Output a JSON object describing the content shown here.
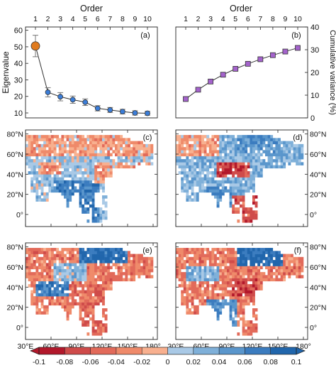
{
  "chart_data": [
    {
      "panel": "(a)",
      "type": "line",
      "title": "Order",
      "xlabel": "",
      "ylabel": "Eigenvalue",
      "x": [
        1,
        2,
        3,
        4,
        5,
        6,
        7,
        8,
        9,
        10
      ],
      "xticks": [
        "1",
        "2",
        "3",
        "4",
        "5",
        "6",
        "7",
        "8",
        "9",
        "10"
      ],
      "yticks": [
        "10",
        "20",
        "30",
        "40",
        "50",
        "60"
      ],
      "ylim": [
        7,
        62
      ],
      "series": [
        {
          "values": [
            50.5,
            22.5,
            19.8,
            18.0,
            16.5,
            12.8,
            11.8,
            10.8,
            10.0,
            9.8
          ],
          "error": [
            6.5,
            2.8,
            2.5,
            2.2,
            2.0,
            1.6,
            1.5,
            1.4,
            1.3,
            1.2
          ]
        }
      ],
      "marker_first_color": "#e07b1f",
      "marker_color": "#3b7dd8",
      "grid": false
    },
    {
      "panel": "(b)",
      "type": "line",
      "title": "Order",
      "xlabel": "",
      "ylabel": "Cumulative variance (%)",
      "x": [
        1,
        2,
        3,
        4,
        5,
        6,
        7,
        8,
        9,
        10
      ],
      "xticks": [
        "1",
        "2",
        "3",
        "4",
        "5",
        "6",
        "7",
        "8",
        "9",
        "10"
      ],
      "yticks": [
        "0",
        "10",
        "20",
        "30",
        "40"
      ],
      "ylim": [
        0,
        40
      ],
      "series": [
        {
          "values": [
            8.3,
            12.4,
            16.0,
            19.0,
            21.6,
            23.8,
            25.8,
            27.6,
            29.2,
            30.8
          ]
        }
      ],
      "marker_color": "#a463cc",
      "grid": false
    },
    {
      "panel": "(c)",
      "type": "heatmap",
      "pattern": "c",
      "lat_ticks": [
        "0°",
        "20°N",
        "40°N",
        "60°N",
        "80°N"
      ]
    },
    {
      "panel": "(d)",
      "type": "heatmap",
      "pattern": "d",
      "lat_ticks": [
        "0°",
        "20°N",
        "40°N",
        "60°N",
        "80°N"
      ]
    },
    {
      "panel": "(e)",
      "type": "heatmap",
      "pattern": "e",
      "lat_ticks": [
        "0°",
        "20°N",
        "40°N",
        "60°N",
        "80°N"
      ]
    },
    {
      "panel": "(f)",
      "type": "heatmap",
      "pattern": "f",
      "lat_ticks": [
        "0°",
        "20°N",
        "40°N",
        "60°N",
        "80°N"
      ],
      "lon_ticks": [
        "30°E",
        "60°E",
        "90°E",
        "120°E",
        "150°E",
        "180°"
      ]
    }
  ],
  "lon_ticks": [
    "30°E",
    "60°E",
    "90°E",
    "120°E",
    "150°E",
    "180°"
  ],
  "colorbar": {
    "ticks": [
      "-0.1",
      "-0.08",
      "-0.06",
      "-0.04",
      "-0.02",
      "0",
      "0.02",
      "0.04",
      "0.06",
      "0.08",
      "0.1"
    ],
    "colors": [
      "#b2182b",
      "#cf4b4a",
      "#e26a5a",
      "#ef8a6a",
      "#f8b08f",
      "#a9c9e6",
      "#7fb0d9",
      "#5a96cc",
      "#3b7cbf",
      "#2166ac"
    ]
  }
}
